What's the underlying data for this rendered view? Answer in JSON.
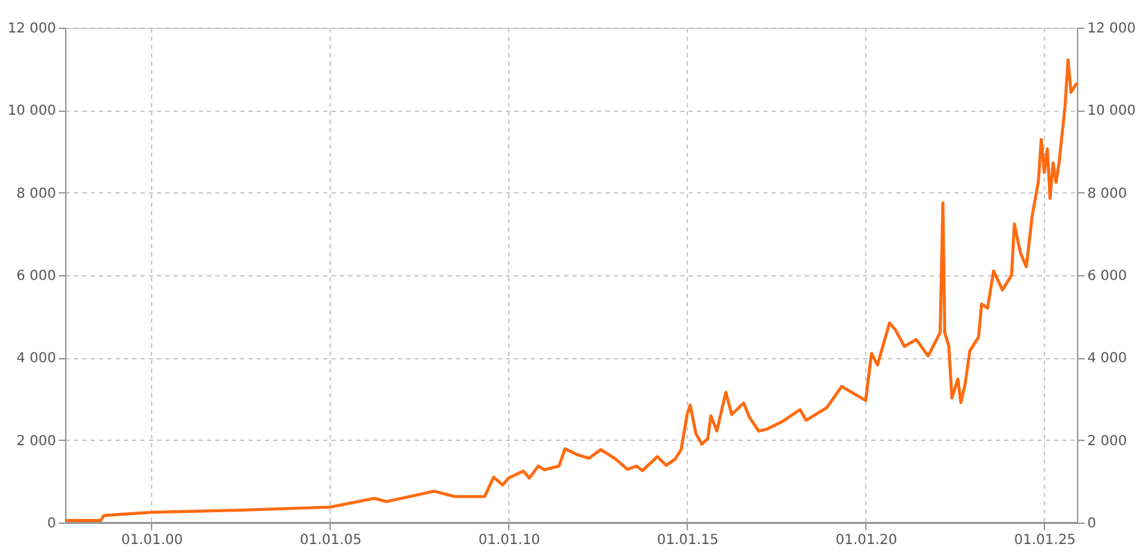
{
  "chart_data": {
    "type": "line",
    "x": [
      "1997-08-01",
      "1998-08-01",
      "1998-09-01",
      "1999-03-01",
      "2000-01-01",
      "2002-06-01",
      "2005-01-01",
      "2006-04-01",
      "2006-08-01",
      "2007-12-01",
      "2008-07-01",
      "2009-01-01",
      "2009-05-01",
      "2009-08-01",
      "2009-11-01",
      "2010-01-01",
      "2010-06-01",
      "2010-08-01",
      "2010-11-01",
      "2011-01-01",
      "2011-06-01",
      "2011-08-01",
      "2011-12-01",
      "2012-04-01",
      "2012-08-01",
      "2013-01-01",
      "2013-05-01",
      "2013-08-01",
      "2013-10-01",
      "2014-03-01",
      "2014-06-01",
      "2014-09-01",
      "2014-11-01",
      "2015-01-01",
      "2015-02-01",
      "2015-04-01",
      "2015-06-01",
      "2015-08-01",
      "2015-09-01",
      "2015-11-01",
      "2016-02-01",
      "2016-04-01",
      "2016-08-01",
      "2016-10-01",
      "2017-01-01",
      "2017-04-01",
      "2017-09-01",
      "2018-03-01",
      "2018-05-01",
      "2018-12-01",
      "2019-05-01",
      "2020-01-01",
      "2020-03-01",
      "2020-05-01",
      "2020-09-01",
      "2020-11-01",
      "2021-02-01",
      "2021-06-01",
      "2021-10-01",
      "2022-02-01",
      "2022-03-01",
      "2022-03-20",
      "2022-05-01",
      "2022-06-01",
      "2022-08-01",
      "2022-09-01",
      "2022-10-15",
      "2022-12-01",
      "2023-03-01",
      "2023-04-01",
      "2023-06-01",
      "2023-08-01",
      "2023-11-01",
      "2024-02-01",
      "2024-03-01",
      "2024-05-01",
      "2024-07-01",
      "2024-09-01",
      "2024-11-01",
      "2024-12-01",
      "2025-01-01",
      "2025-02-01",
      "2025-03-01",
      "2025-04-01",
      "2025-05-01",
      "2025-06-01",
      "2025-08-01",
      "2025-09-01",
      "2025-10-01",
      "2025-12-01"
    ],
    "series": [
      {
        "color": "#ff6a10",
        "values": [
          50,
          50,
          170,
          200,
          250,
          300,
          375,
          590,
          510,
          760,
          630,
          630,
          630,
          1100,
          910,
          1080,
          1250,
          1080,
          1370,
          1280,
          1370,
          1790,
          1650,
          1560,
          1770,
          1540,
          1290,
          1370,
          1260,
          1600,
          1390,
          1540,
          1770,
          2620,
          2850,
          2160,
          1900,
          2040,
          2590,
          2220,
          3160,
          2620,
          2900,
          2550,
          2220,
          2270,
          2450,
          2740,
          2480,
          2790,
          3300,
          2960,
          4100,
          3820,
          4840,
          4670,
          4270,
          4440,
          4040,
          4610,
          7750,
          4610,
          4270,
          3020,
          3480,
          2910,
          3360,
          4160,
          4500,
          5300,
          5200,
          6100,
          5640,
          6000,
          7240,
          6550,
          6200,
          7460,
          8260,
          9290,
          8490,
          9060,
          7860,
          8720,
          8250,
          8720,
          10090,
          11220,
          10430,
          10660
        ]
      }
    ],
    "xlim": [
      "1997-08-01",
      "2025-12-01"
    ],
    "xticks": [
      {
        "value": "2000-01-01",
        "label": "01.01.00"
      },
      {
        "value": "2005-01-01",
        "label": "01.01.05"
      },
      {
        "value": "2010-01-01",
        "label": "01.01.10"
      },
      {
        "value": "2015-01-01",
        "label": "01.01.15"
      },
      {
        "value": "2020-01-01",
        "label": "01.01.20"
      },
      {
        "value": "2025-01-01",
        "label": "01.01.25"
      }
    ],
    "ylim": [
      0,
      12000
    ],
    "yticks": [
      0,
      {
        "value": 2000,
        "label": "2 000"
      },
      {
        "value": 4000,
        "label": "4 000"
      },
      {
        "value": 6000,
        "label": "6 000"
      },
      {
        "value": 8000,
        "label": "8 000"
      },
      {
        "value": 10000,
        "label": "10 000"
      },
      {
        "value": 12000,
        "label": "12 000"
      }
    ],
    "y2lim": [
      0,
      12000
    ],
    "y2ticks": [
      0,
      {
        "value": 2000,
        "label": "2 000"
      },
      {
        "value": 4000,
        "label": "4 000"
      },
      {
        "value": 6000,
        "label": "6 000"
      },
      {
        "value": 8000,
        "label": "8 000"
      },
      {
        "value": 10000,
        "label": "10 000"
      },
      {
        "value": 12000,
        "label": "12 000"
      }
    ],
    "grid": true,
    "marker": "none",
    "line_style": "solid"
  }
}
